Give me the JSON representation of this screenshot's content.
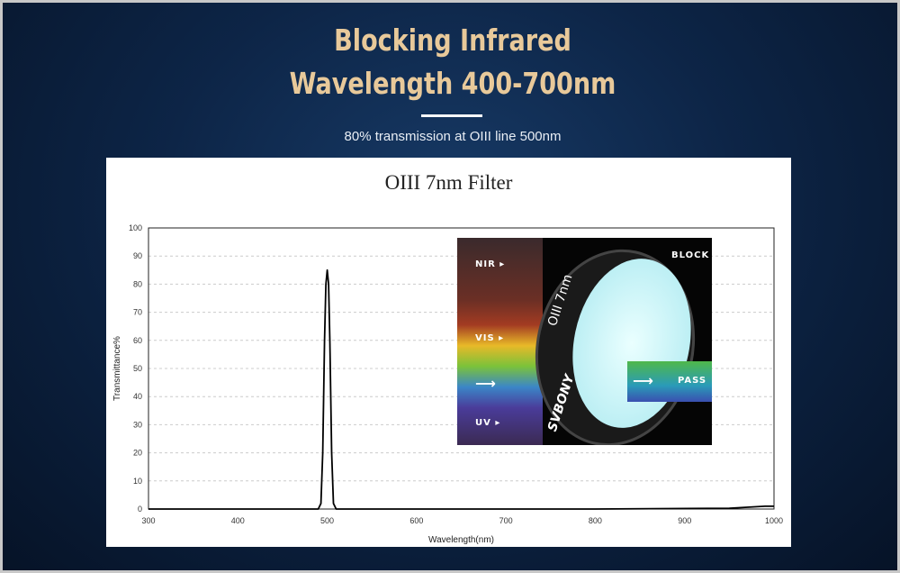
{
  "header": {
    "title_line1": "Blocking Infrared",
    "title_line2": "Wavelength 400-700nm",
    "subtitle": "80% transmission at OIII line 500nm"
  },
  "inset": {
    "nir": "NIR ▸",
    "vis": "VIS ▸",
    "uv": "UV ▸",
    "block": "BLOCK",
    "pass": "PASS",
    "ring_text": "OIII 7nm",
    "brand": "SVBONY"
  },
  "chart_data": {
    "type": "line",
    "title": "OIII 7nm Filter",
    "xlabel": "Wavelength(nm)",
    "ylabel": "Transmittance%",
    "xlim": [
      300,
      1000
    ],
    "ylim": [
      0,
      100
    ],
    "xticks": [
      300,
      400,
      500,
      600,
      700,
      800,
      900,
      1000
    ],
    "yticks": [
      0,
      10,
      20,
      30,
      40,
      50,
      60,
      70,
      80,
      90,
      100
    ],
    "grid": true,
    "series": [
      {
        "name": "OIII 7nm",
        "x": [
          300,
          490,
          493,
          495,
          497,
          498.5,
          500,
          501.5,
          503,
          505,
          507,
          510,
          800,
          950,
          990,
          1000
        ],
        "y": [
          0,
          0,
          2,
          20,
          60,
          80,
          85,
          80,
          60,
          20,
          2,
          0,
          0,
          0.3,
          1,
          1
        ]
      }
    ]
  }
}
